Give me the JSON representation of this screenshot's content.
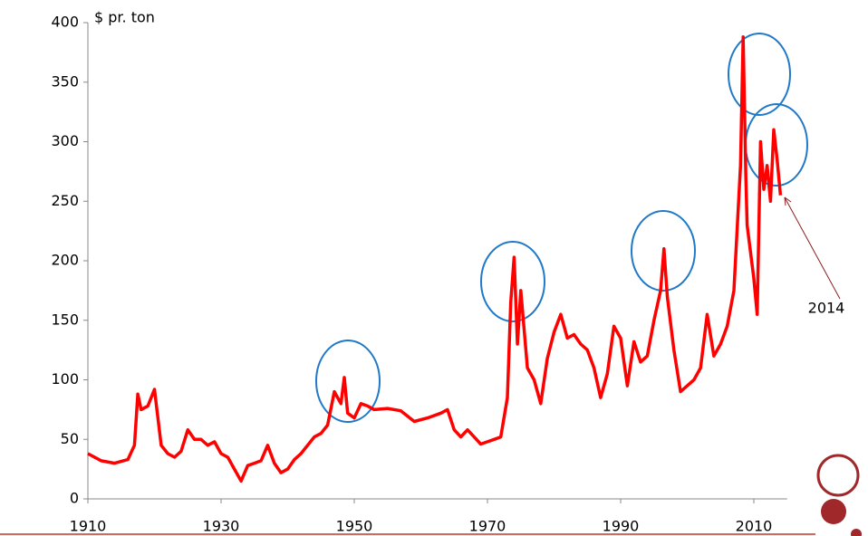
{
  "chart_data": {
    "type": "line",
    "y_label": "$ pr. ton",
    "annotation": "2014",
    "xlim": [
      1910,
      2015
    ],
    "xticks": [
      1910,
      1930,
      1950,
      1970,
      1990,
      2010
    ],
    "ylim": [
      0,
      400
    ],
    "yticks": [
      0,
      50,
      100,
      150,
      200,
      250,
      300,
      350,
      400
    ],
    "series": [
      {
        "color": "#ff0000",
        "x": [
          1910,
          1912,
          1914,
          1916,
          1917,
          1917.5,
          1918,
          1919,
          1920,
          1921,
          1922,
          1923,
          1924,
          1925,
          1926,
          1927,
          1928,
          1929,
          1930,
          1931,
          1932,
          1933,
          1934,
          1935,
          1936,
          1937,
          1938,
          1939,
          1940,
          1941,
          1942,
          1943,
          1944,
          1945,
          1946,
          1947,
          1948,
          1948.5,
          1949,
          1950,
          1951,
          1952,
          1953,
          1955,
          1957,
          1959,
          1961,
          1963,
          1964,
          1965,
          1966,
          1967,
          1968,
          1969,
          1970,
          1971,
          1972,
          1973,
          1973.5,
          1974,
          1974.5,
          1975,
          1976,
          1977,
          1978,
          1979,
          1980,
          1981,
          1982,
          1983,
          1984,
          1985,
          1986,
          1987,
          1988,
          1989,
          1990,
          1991,
          1992,
          1993,
          1994,
          1995,
          1996,
          1996.5,
          1997,
          1998,
          1999,
          2000,
          2001,
          2002,
          2003,
          2004,
          2005,
          2006,
          2007,
          2008,
          2008.4,
          2008.8,
          2009,
          2010,
          2010.5,
          2011,
          2011.5,
          2012,
          2012.5,
          2013,
          2013.5,
          2014
        ],
        "values": [
          38,
          32,
          30,
          33,
          45,
          88,
          75,
          78,
          92,
          45,
          38,
          35,
          40,
          58,
          50,
          50,
          45,
          48,
          38,
          35,
          25,
          15,
          28,
          30,
          32,
          45,
          30,
          22,
          25,
          33,
          38,
          45,
          52,
          55,
          62,
          90,
          80,
          102,
          72,
          68,
          80,
          78,
          75,
          76,
          74,
          65,
          68,
          72,
          75,
          58,
          52,
          58,
          52,
          46,
          48,
          50,
          52,
          85,
          165,
          203,
          130,
          175,
          110,
          100,
          80,
          118,
          140,
          155,
          135,
          138,
          130,
          125,
          110,
          85,
          105,
          145,
          135,
          95,
          132,
          115,
          120,
          150,
          175,
          210,
          170,
          125,
          90,
          95,
          100,
          110,
          155,
          120,
          130,
          145,
          175,
          280,
          388,
          270,
          230,
          185,
          155,
          300,
          260,
          280,
          250,
          310,
          285,
          255
        ]
      }
    ]
  }
}
